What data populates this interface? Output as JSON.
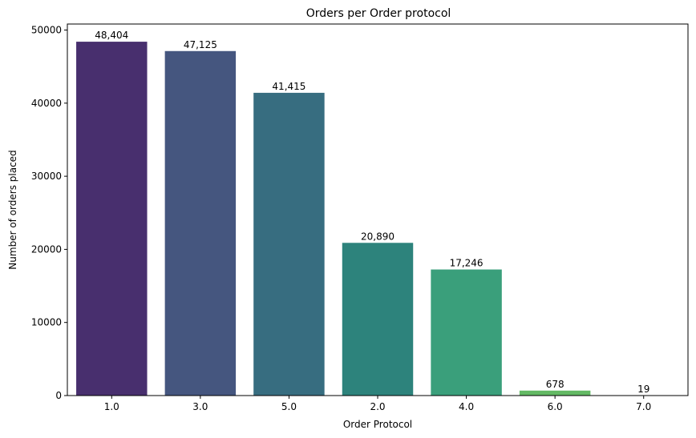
{
  "chart_data": {
    "type": "bar",
    "title": "Orders per Order protocol",
    "xlabel": "Order Protocol",
    "ylabel": "Number of orders placed",
    "categories": [
      "1.0",
      "3.0",
      "5.0",
      "2.0",
      "4.0",
      "6.0",
      "7.0"
    ],
    "values": [
      48404,
      47125,
      41415,
      20890,
      17246,
      678,
      19
    ],
    "value_labels": [
      "48,404",
      "47,125",
      "41,415",
      "20,890",
      "17,246",
      "678",
      "19"
    ],
    "colors": [
      "#482f6e",
      "#45567f",
      "#376d80",
      "#2d837c",
      "#3a9f7b",
      "#63b964",
      "#b3d94a"
    ],
    "yticks": [
      0,
      10000,
      20000,
      30000,
      40000,
      50000
    ],
    "ylim": [
      0,
      50824
    ],
    "grid": false,
    "legend": "none"
  }
}
